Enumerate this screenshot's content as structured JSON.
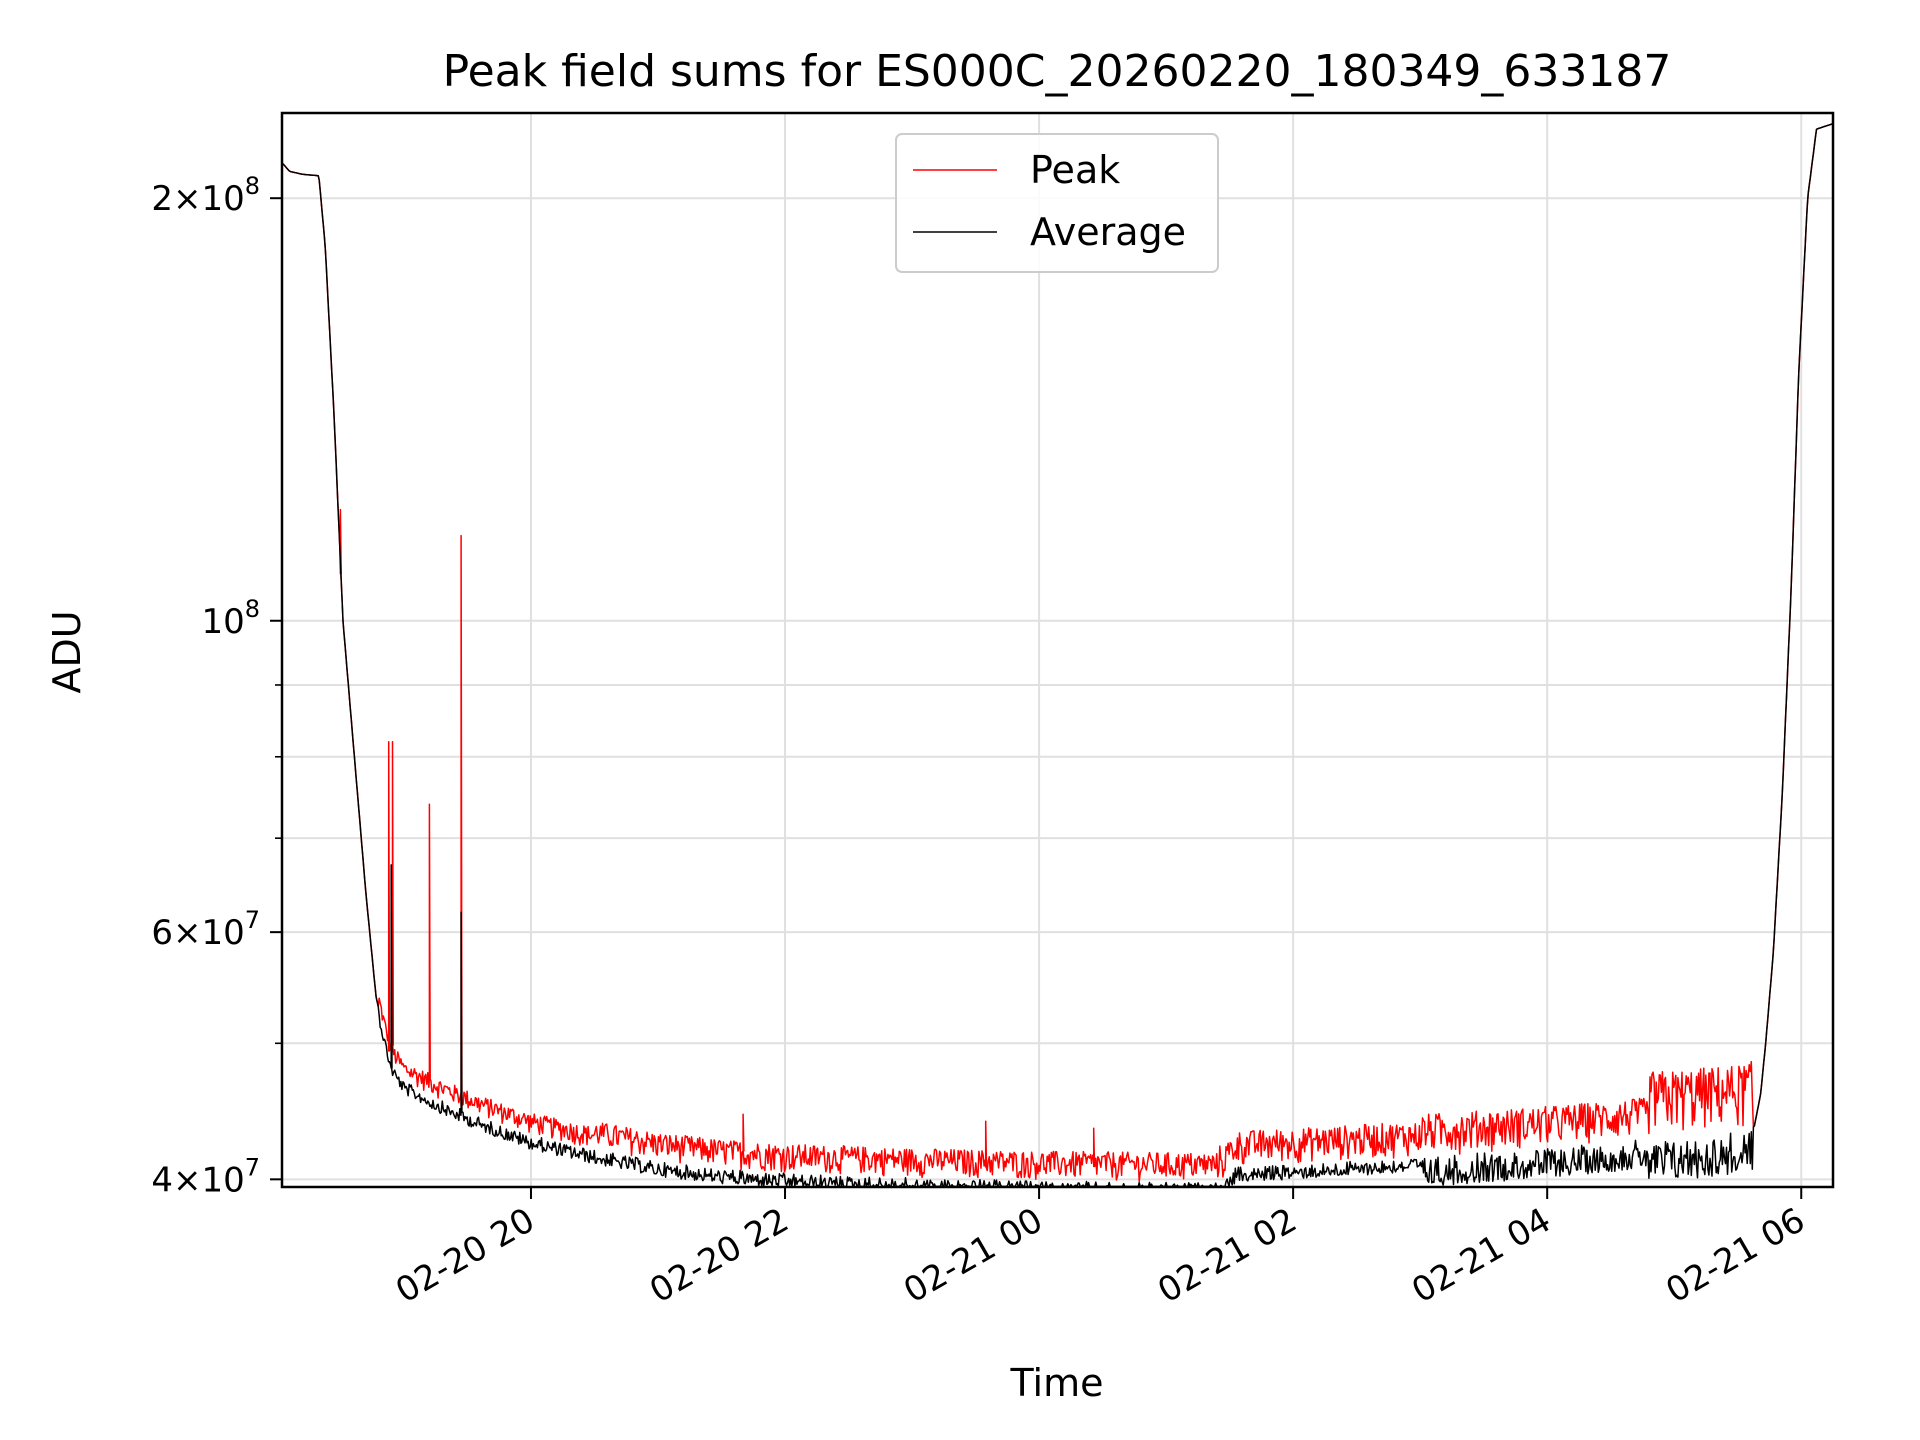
{
  "chart_data": {
    "type": "line",
    "title": "Peak field sums for ES000C_20260220_180349_633187",
    "xlabel": "Time",
    "ylabel": "ADU",
    "yscale": "log",
    "ylim": [
      39500000,
      230000000
    ],
    "xlim_hours": [
      18.04,
      30.25
    ],
    "grid": true,
    "legend": {
      "position": "upper-center",
      "entries": [
        "Peak",
        "Average"
      ]
    },
    "x_ticks": [
      {
        "label": "02-20 20",
        "value": 20
      },
      {
        "label": "02-20 22",
        "value": 22
      },
      {
        "label": "02-21 00",
        "value": 24
      },
      {
        "label": "02-21 02",
        "value": 26
      },
      {
        "label": "02-21 04",
        "value": 28
      },
      {
        "label": "02-21 06",
        "value": 30
      }
    ],
    "y_major_ticks": [
      {
        "mant": "4",
        "exp": "7",
        "value": 40000000
      },
      {
        "mant": "6",
        "exp": "7",
        "value": 60000000
      },
      {
        "mant": "",
        "exp": "8",
        "value": 100000000
      },
      {
        "mant": "2",
        "exp": "8",
        "value": 200000000
      }
    ],
    "y_minor_ticks": [
      50000000,
      70000000,
      80000000,
      90000000
    ],
    "series": [
      {
        "name": "Peak",
        "color": "#ff0000",
        "noise_up": [
          1500000,
          1600000,
          2000000,
          2500000,
          3000000,
          5000000
        ],
        "noise_breaks_hours": [
          18.9,
          20.5,
          25.4,
          27.0,
          28.8,
          29.6
        ],
        "spikes": [
          {
            "x": 18.5,
            "y": 120000000
          },
          {
            "x": 18.88,
            "y": 82000000
          },
          {
            "x": 18.91,
            "y": 82000000
          },
          {
            "x": 19.2,
            "y": 74000000
          },
          {
            "x": 19.45,
            "y": 115000000
          },
          {
            "x": 21.67,
            "y": 44500000
          },
          {
            "x": 23.58,
            "y": 44000000
          },
          {
            "x": 24.43,
            "y": 43500000
          }
        ]
      },
      {
        "name": "Average",
        "color": "#000000",
        "points": [
          [
            18.04,
            212000000
          ],
          [
            18.1,
            209000000
          ],
          [
            18.2,
            208000000
          ],
          [
            18.33,
            207500000
          ],
          [
            18.38,
            185000000
          ],
          [
            18.45,
            140000000
          ],
          [
            18.52,
            100000000
          ],
          [
            18.6,
            82000000
          ],
          [
            18.7,
            64000000
          ],
          [
            18.78,
            54000000
          ],
          [
            18.84,
            51000000
          ],
          [
            18.9,
            48500000
          ],
          [
            19.0,
            47000000
          ],
          [
            19.3,
            45500000
          ],
          [
            19.6,
            44300000
          ],
          [
            20.0,
            43000000
          ],
          [
            20.5,
            42000000
          ],
          [
            21.0,
            41200000
          ],
          [
            21.5,
            40700000
          ],
          [
            22.0,
            40400000
          ],
          [
            23.0,
            40100000
          ],
          [
            24.0,
            39900000
          ],
          [
            25.0,
            39800000
          ],
          [
            25.45,
            39800000
          ],
          [
            25.55,
            40800000
          ],
          [
            26.0,
            41000000
          ],
          [
            27.0,
            41500000
          ],
          [
            28.0,
            42100000
          ],
          [
            29.0,
            42900000
          ],
          [
            29.5,
            43300000
          ],
          [
            29.63,
            43600000
          ],
          [
            29.68,
            46000000
          ],
          [
            29.72,
            50000000
          ],
          [
            29.78,
            58000000
          ],
          [
            29.85,
            75000000
          ],
          [
            29.92,
            105000000
          ],
          [
            29.98,
            150000000
          ],
          [
            30.05,
            200000000
          ],
          [
            30.12,
            224000000
          ],
          [
            30.25,
            226000000
          ]
        ],
        "noise_down": [
          1000000,
          1000000,
          1000000,
          1000000,
          2000000,
          3000000
        ],
        "spikes": [
          {
            "x": 18.9,
            "y": 67000000
          },
          {
            "x": 19.45,
            "y": 62000000
          }
        ]
      }
    ]
  }
}
